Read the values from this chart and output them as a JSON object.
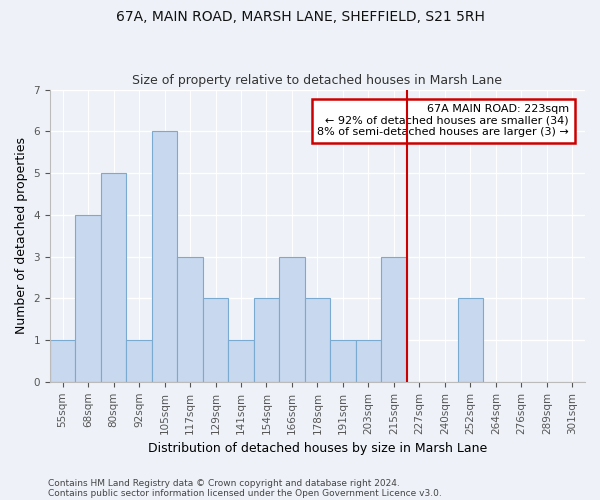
{
  "title1": "67A, MAIN ROAD, MARSH LANE, SHEFFIELD, S21 5RH",
  "title2": "Size of property relative to detached houses in Marsh Lane",
  "xlabel": "Distribution of detached houses by size in Marsh Lane",
  "ylabel": "Number of detached properties",
  "bar_labels": [
    "55sqm",
    "68sqm",
    "80sqm",
    "92sqm",
    "105sqm",
    "117sqm",
    "129sqm",
    "141sqm",
    "154sqm",
    "166sqm",
    "178sqm",
    "191sqm",
    "203sqm",
    "215sqm",
    "227sqm",
    "240sqm",
    "252sqm",
    "264sqm",
    "276sqm",
    "289sqm",
    "301sqm"
  ],
  "bar_values": [
    1,
    4,
    5,
    1,
    6,
    3,
    2,
    1,
    2,
    3,
    2,
    1,
    1,
    3,
    0,
    0,
    2,
    0,
    0,
    0,
    0
  ],
  "bar_color": "#c8d8ee",
  "bar_edge_color": "#7aaad0",
  "background_color": "#eef2f8",
  "vline_index": 14,
  "vline_color": "#cc0000",
  "annotation_title": "67A MAIN ROAD: 223sqm",
  "annotation_line1": "← 92% of detached houses are smaller (34)",
  "annotation_line2": "8% of semi-detached houses are larger (3) →",
  "annotation_box_color": "#cc0000",
  "ylim": [
    0,
    7
  ],
  "yticks": [
    0,
    1,
    2,
    3,
    4,
    5,
    6,
    7
  ],
  "footer1": "Contains HM Land Registry data © Crown copyright and database right 2024.",
  "footer2": "Contains public sector information licensed under the Open Government Licence v3.0."
}
